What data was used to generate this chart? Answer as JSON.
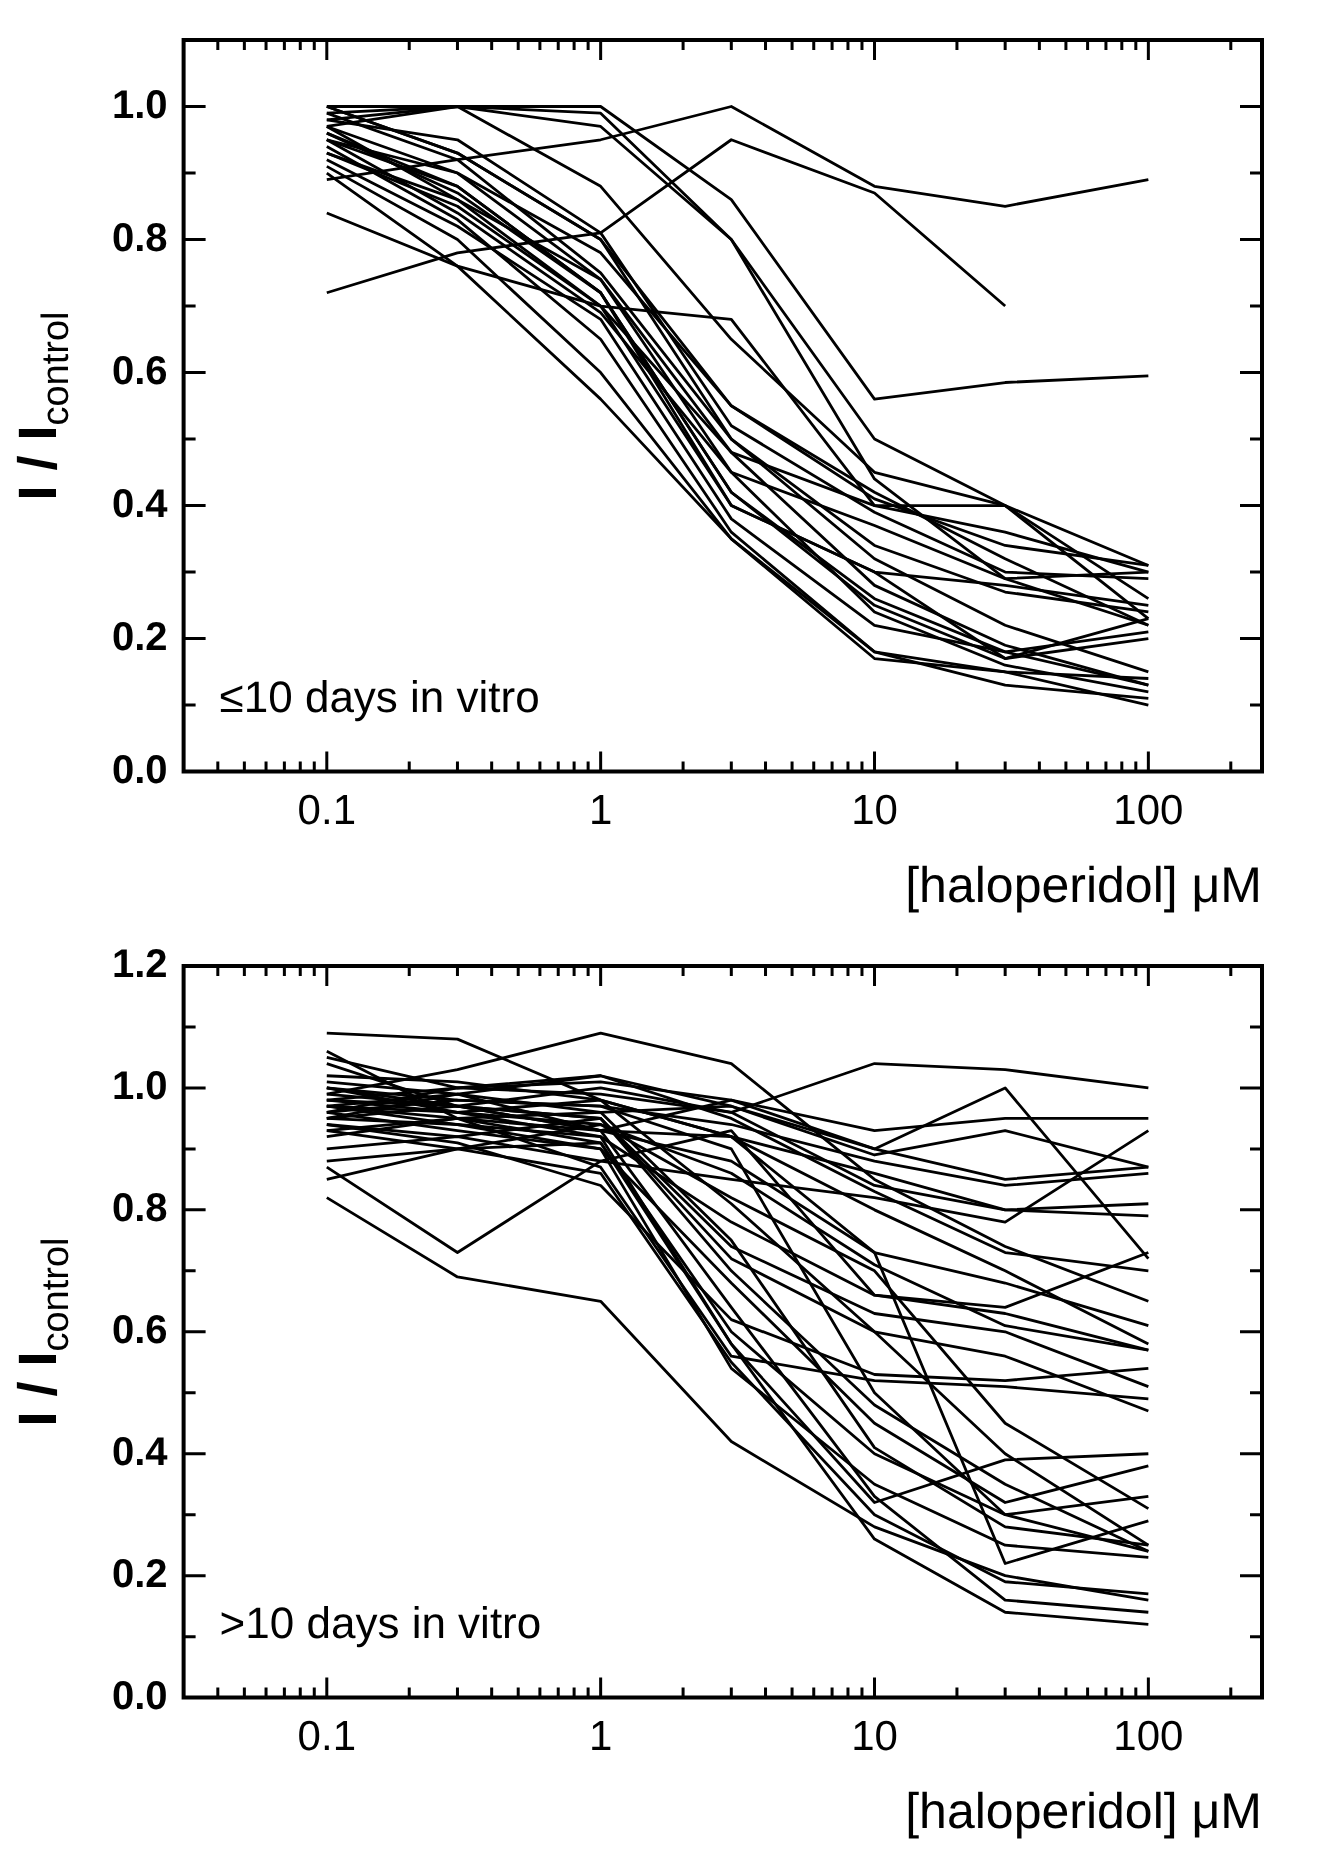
{
  "chart_data": [
    {
      "type": "line",
      "xlabel": "[haloperidol] μM",
      "ylabel": "I / I$_{control}$",
      "annotations": [
        "≤10 days in vitro"
      ],
      "log": "x",
      "xlim": [
        0.03,
        260
      ],
      "ylim": [
        0,
        1.1
      ],
      "xticks": [
        {
          "value": 0.04,
          "label": null
        },
        {
          "value": 0.05,
          "label": null
        },
        {
          "value": 0.06,
          "label": null
        },
        {
          "value": 0.07,
          "label": null
        },
        {
          "value": 0.08,
          "label": null
        },
        {
          "value": 0.09,
          "label": null
        },
        0.1,
        {
          "value": 0.2,
          "label": null
        },
        {
          "value": 0.3,
          "label": null
        },
        {
          "value": 0.4,
          "label": null
        },
        {
          "value": 0.5,
          "label": null
        },
        {
          "value": 0.6,
          "label": null
        },
        {
          "value": 0.7,
          "label": null
        },
        {
          "value": 0.8,
          "label": null
        },
        {
          "value": 0.9,
          "label": null
        },
        1,
        {
          "value": 2,
          "label": null
        },
        {
          "value": 3,
          "label": null
        },
        {
          "value": 4,
          "label": null
        },
        {
          "value": 5,
          "label": null
        },
        {
          "value": 6,
          "label": null
        },
        {
          "value": 7,
          "label": null
        },
        {
          "value": 8,
          "label": null
        },
        {
          "value": 9,
          "label": null
        },
        10,
        {
          "value": 20,
          "label": null
        },
        {
          "value": 30,
          "label": null
        },
        {
          "value": 40,
          "label": null
        },
        {
          "value": 50,
          "label": null
        },
        {
          "value": 60,
          "label": null
        },
        {
          "value": 70,
          "label": null
        },
        {
          "value": 80,
          "label": null
        },
        {
          "value": 90,
          "label": null
        },
        100,
        {
          "value": 200,
          "label": null
        }
      ],
      "yticks": [
        {
          "value": 0,
          "label": "0.0"
        },
        {
          "value": 0.1,
          "label": null
        },
        0.2,
        {
          "value": 0.3,
          "label": null
        },
        0.4,
        {
          "value": 0.5,
          "label": null
        },
        0.6,
        {
          "value": 0.7,
          "label": null
        },
        0.8,
        {
          "value": 0.9,
          "label": null
        },
        {
          "value": 1,
          "label": "1.0"
        }
      ],
      "x": [
        0.1,
        0.3,
        1,
        3,
        10,
        30,
        100
      ],
      "series": [
        {
          "color": "#000000",
          "values": [
            0.72,
            0.78,
            0.81,
            0.95,
            0.87,
            0.7,
            null
          ]
        },
        {
          "color": "#000000",
          "values": [
            0.89,
            0.92,
            0.95,
            1.0,
            0.88,
            0.85,
            0.89
          ]
        },
        {
          "color": "#000000",
          "values": [
            0.98,
            1.0,
            1.0,
            0.86,
            0.56,
            0.585,
            0.595
          ]
        },
        {
          "color": "#000000",
          "values": [
            0.84,
            0.76,
            0.7,
            0.68,
            0.4,
            0.36,
            0.3
          ]
        },
        {
          "color": "#000000",
          "values": [
            1.0,
            1.0,
            0.99,
            0.8,
            0.5,
            0.4,
            0.31
          ]
        },
        {
          "color": "#000000",
          "values": [
            0.97,
            1.0,
            0.88,
            0.65,
            0.45,
            0.4,
            0.23
          ]
        },
        {
          "color": "#000000",
          "values": [
            1.0,
            0.93,
            0.8,
            0.55,
            0.42,
            0.32,
            0.22
          ]
        },
        {
          "color": "#000000",
          "values": [
            0.95,
            0.9,
            0.74,
            0.45,
            0.37,
            0.29,
            0.3
          ]
        },
        {
          "color": "#000000",
          "values": [
            0.93,
            0.85,
            0.7,
            0.4,
            0.3,
            0.28,
            0.25
          ]
        },
        {
          "color": "#000000",
          "values": [
            0.96,
            0.88,
            0.72,
            0.42,
            0.25,
            0.17,
            0.23
          ]
        },
        {
          "color": "#000000",
          "values": [
            0.92,
            0.82,
            0.68,
            0.38,
            0.22,
            0.18,
            0.21
          ]
        },
        {
          "color": "#000000",
          "values": [
            0.94,
            0.83,
            0.65,
            0.36,
            0.18,
            0.15,
            0.14
          ]
        },
        {
          "color": "#000000",
          "values": [
            0.91,
            0.8,
            0.6,
            0.35,
            0.18,
            0.13,
            0.11
          ]
        },
        {
          "color": "#000000",
          "values": [
            0.9,
            0.76,
            0.56,
            0.35,
            0.17,
            0.15,
            0.1
          ]
        },
        {
          "color": "#000000",
          "values": [
            0.97,
            0.86,
            0.7,
            0.48,
            0.28,
            0.19,
            0.13
          ]
        },
        {
          "color": "#000000",
          "values": [
            0.95,
            0.84,
            0.69,
            0.45,
            0.24,
            0.16,
            0.12
          ]
        },
        {
          "color": "#000000",
          "values": [
            0.99,
            0.92,
            0.75,
            0.5,
            0.32,
            0.22,
            0.15
          ]
        },
        {
          "color": "#000000",
          "values": [
            0.96,
            0.87,
            0.72,
            0.42,
            0.26,
            0.18,
            0.13
          ]
        },
        {
          "color": "#000000",
          "values": [
            0.98,
            0.95,
            0.81,
            0.52,
            0.39,
            0.3,
            0.29
          ]
        },
        {
          "color": "#000000",
          "values": [
            0.93,
            0.86,
            0.74,
            0.48,
            0.4,
            0.4,
            0.26
          ]
        },
        {
          "color": "#000000",
          "values": [
            0.97,
            0.9,
            0.78,
            0.55,
            0.41,
            0.34,
            0.31
          ]
        },
        {
          "color": "#000000",
          "values": [
            1.0,
            0.93,
            0.8,
            0.5,
            0.34,
            0.27,
            0.24
          ]
        },
        {
          "color": "#000000",
          "values": [
            0.95,
            0.88,
            0.72,
            0.4,
            0.3,
            0.17,
            0.2
          ]
        },
        {
          "color": "#000000",
          "values": [
            0.99,
            1.0,
            0.97,
            0.8,
            0.44,
            0.29,
            0.22
          ]
        }
      ]
    },
    {
      "type": "line",
      "xlabel": "[haloperidol] μM",
      "ylabel": "I / I$_{control}$",
      "annotations": [
        ">10 days in vitro"
      ],
      "log": "x",
      "xlim": [
        0.03,
        260
      ],
      "ylim": [
        0,
        1.2
      ],
      "xticks": [
        {
          "value": 0.04,
          "label": null
        },
        {
          "value": 0.05,
          "label": null
        },
        {
          "value": 0.06,
          "label": null
        },
        {
          "value": 0.07,
          "label": null
        },
        {
          "value": 0.08,
          "label": null
        },
        {
          "value": 0.09,
          "label": null
        },
        0.1,
        {
          "value": 0.2,
          "label": null
        },
        {
          "value": 0.3,
          "label": null
        },
        {
          "value": 0.4,
          "label": null
        },
        {
          "value": 0.5,
          "label": null
        },
        {
          "value": 0.6,
          "label": null
        },
        {
          "value": 0.7,
          "label": null
        },
        {
          "value": 0.8,
          "label": null
        },
        {
          "value": 0.9,
          "label": null
        },
        1,
        {
          "value": 2,
          "label": null
        },
        {
          "value": 3,
          "label": null
        },
        {
          "value": 4,
          "label": null
        },
        {
          "value": 5,
          "label": null
        },
        {
          "value": 6,
          "label": null
        },
        {
          "value": 7,
          "label": null
        },
        {
          "value": 8,
          "label": null
        },
        {
          "value": 9,
          "label": null
        },
        10,
        {
          "value": 20,
          "label": null
        },
        {
          "value": 30,
          "label": null
        },
        {
          "value": 40,
          "label": null
        },
        {
          "value": 50,
          "label": null
        },
        {
          "value": 60,
          "label": null
        },
        {
          "value": 70,
          "label": null
        },
        {
          "value": 80,
          "label": null
        },
        {
          "value": 90,
          "label": null
        },
        100,
        {
          "value": 200,
          "label": null
        }
      ],
      "yticks": [
        {
          "value": 0,
          "label": "0.0"
        },
        {
          "value": 0.1,
          "label": null
        },
        0.2,
        {
          "value": 0.3,
          "label": null
        },
        0.4,
        {
          "value": 0.5,
          "label": null
        },
        0.6,
        {
          "value": 0.7,
          "label": null
        },
        0.8,
        {
          "value": 0.9,
          "label": null
        },
        {
          "value": 1,
          "label": "1.0"
        },
        {
          "value": 1.1,
          "label": null
        },
        1.2
      ],
      "x": [
        0.1,
        0.3,
        1,
        3,
        10,
        30,
        100
      ],
      "series": [
        {
          "color": "#000000",
          "values": [
            0.95,
            0.97,
            1.0,
            0.96,
            1.04,
            1.03,
            1.0
          ]
        },
        {
          "color": "#000000",
          "values": [
            0.98,
            1.0,
            1.01,
            0.98,
            0.93,
            0.95,
            0.95
          ]
        },
        {
          "color": "#000000",
          "values": [
            0.93,
            0.95,
            0.96,
            0.97,
            0.9,
            1.0,
            0.72
          ]
        },
        {
          "color": "#000000",
          "values": [
            0.97,
            0.99,
            1.02,
            0.97,
            0.89,
            0.93,
            0.87
          ]
        },
        {
          "color": "#000000",
          "values": [
            1.0,
            0.98,
            0.97,
            0.94,
            0.88,
            0.84,
            0.86
          ]
        },
        {
          "color": "#000000",
          "values": [
            0.92,
            0.95,
            0.93,
            0.92,
            0.86,
            0.8,
            0.81
          ]
        },
        {
          "color": "#000000",
          "values": [
            0.96,
            1.0,
            0.99,
            0.96,
            0.84,
            0.8,
            0.79
          ]
        },
        {
          "color": "#000000",
          "values": [
            1.05,
            1.0,
            1.02,
            0.95,
            0.83,
            0.73,
            0.7
          ]
        },
        {
          "color": "#000000",
          "values": [
            0.99,
            1.03,
            1.09,
            1.04,
            0.85,
            0.74,
            0.65
          ]
        },
        {
          "color": "#000000",
          "values": [
            1.09,
            1.08,
            0.98,
            0.92,
            0.73,
            0.68,
            0.61
          ]
        },
        {
          "color": "#000000",
          "values": [
            0.97,
            0.96,
            0.98,
            0.92,
            0.8,
            0.7,
            0.58
          ]
        },
        {
          "color": "#000000",
          "values": [
            0.87,
            0.73,
            0.88,
            0.93,
            0.66,
            0.63,
            0.57
          ]
        },
        {
          "color": "#000000",
          "values": [
            0.82,
            0.69,
            0.65,
            0.42,
            0.28,
            0.2,
            0.16
          ]
        },
        {
          "color": "#000000",
          "values": [
            0.85,
            0.9,
            0.91,
            0.6,
            0.4,
            0.3,
            0.24
          ]
        },
        {
          "color": "#000000",
          "values": [
            1.06,
            0.95,
            0.87,
            0.56,
            0.52,
            0.51,
            0.49
          ]
        },
        {
          "color": "#000000",
          "values": [
            0.94,
            0.91,
            0.84,
            0.62,
            0.53,
            0.52,
            0.54
          ]
        },
        {
          "color": "#000000",
          "values": [
            0.98,
            0.97,
            0.95,
            0.72,
            0.6,
            0.56,
            0.47
          ]
        },
        {
          "color": "#000000",
          "values": [
            0.96,
            0.93,
            0.9,
            0.68,
            0.45,
            0.32,
            0.38
          ]
        },
        {
          "color": "#000000",
          "values": [
            1.0,
            0.96,
            0.92,
            0.58,
            0.32,
            0.39,
            0.4
          ]
        },
        {
          "color": "#000000",
          "values": [
            0.95,
            0.94,
            0.9,
            0.54,
            0.35,
            0.25,
            0.23
          ]
        },
        {
          "color": "#000000",
          "values": [
            0.93,
            0.9,
            0.86,
            0.55,
            0.3,
            0.19,
            0.17
          ]
        },
        {
          "color": "#000000",
          "values": [
            0.99,
            0.97,
            0.93,
            0.64,
            0.33,
            0.16,
            0.14
          ]
        },
        {
          "color": "#000000",
          "values": [
            0.97,
            0.95,
            0.91,
            0.58,
            0.26,
            0.14,
            0.12
          ]
        },
        {
          "color": "#000000",
          "values": [
            1.01,
            0.99,
            0.96,
            0.75,
            0.41,
            0.28,
            0.25
          ]
        },
        {
          "color": "#000000",
          "values": [
            0.94,
            0.92,
            0.95,
            0.74,
            0.63,
            0.6,
            0.51
          ]
        },
        {
          "color": "#000000",
          "values": [
            0.98,
            0.96,
            0.94,
            0.82,
            0.7,
            0.45,
            0.31
          ]
        },
        {
          "color": "#000000",
          "values": [
            1.04,
            0.97,
            0.93,
            0.88,
            0.73,
            0.22,
            0.29
          ]
        },
        {
          "color": "#000000",
          "values": [
            0.96,
            0.98,
            0.97,
            0.9,
            0.5,
            0.3,
            0.33
          ]
        },
        {
          "color": "#000000",
          "values": [
            1.02,
            1.01,
            0.98,
            0.81,
            0.6,
            0.4,
            0.25
          ]
        },
        {
          "color": "#000000",
          "values": [
            0.97,
            0.94,
            0.92,
            0.78,
            0.66,
            0.64,
            0.73
          ]
        },
        {
          "color": "#000000",
          "values": [
            0.9,
            0.92,
            0.88,
            0.85,
            0.82,
            0.78,
            0.93
          ]
        },
        {
          "color": "#000000",
          "values": [
            0.95,
            0.99,
            0.93,
            0.98,
            0.9,
            0.85,
            0.87
          ]
        },
        {
          "color": "#000000",
          "values": [
            0.88,
            0.9,
            0.94,
            0.86,
            0.71,
            0.61,
            0.57
          ]
        },
        {
          "color": "#000000",
          "values": [
            1.0,
            0.97,
            0.95,
            0.7,
            0.48,
            0.35,
            0.24
          ]
        }
      ]
    }
  ]
}
